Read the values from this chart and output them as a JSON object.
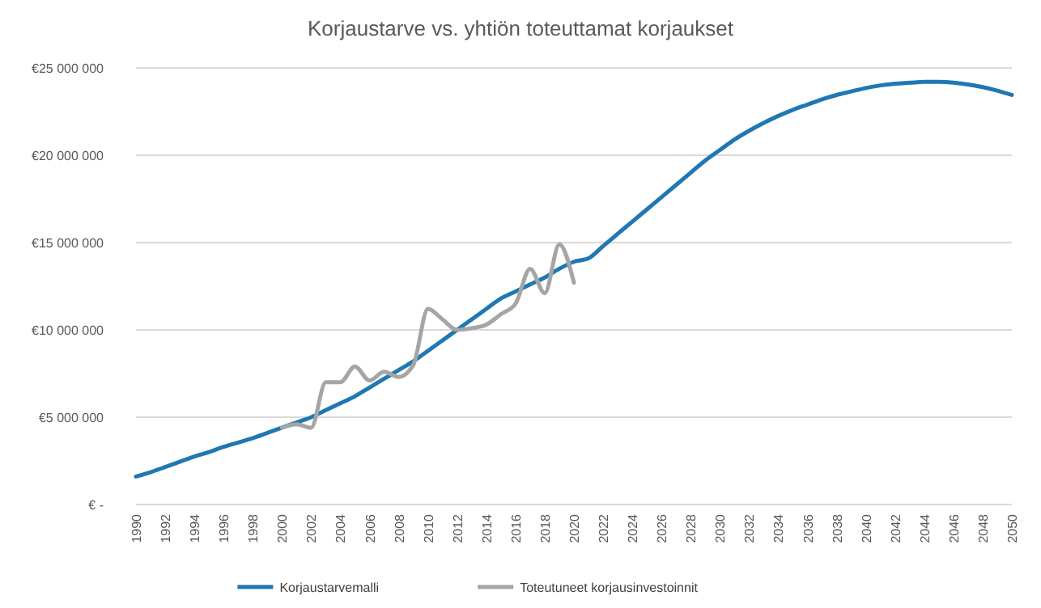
{
  "chart_data": {
    "type": "line",
    "title": "Korjaustarve vs. yhtiön toteuttamat korjaukset",
    "x": [
      1990,
      1991,
      1992,
      1993,
      1994,
      1995,
      1996,
      1997,
      1998,
      1999,
      2000,
      2001,
      2002,
      2003,
      2004,
      2005,
      2006,
      2007,
      2008,
      2009,
      2010,
      2011,
      2012,
      2013,
      2014,
      2015,
      2016,
      2017,
      2018,
      2019,
      2020,
      2021,
      2022,
      2023,
      2024,
      2025,
      2026,
      2027,
      2028,
      2029,
      2030,
      2031,
      2032,
      2033,
      2034,
      2035,
      2036,
      2037,
      2038,
      2039,
      2040,
      2041,
      2042,
      2043,
      2044,
      2045,
      2046,
      2047,
      2048,
      2049,
      2050
    ],
    "series": [
      {
        "name": "Korjaustarvemalli",
        "color": "#1f77b4",
        "values": [
          1600000,
          1850000,
          2150000,
          2450000,
          2750000,
          3000000,
          3300000,
          3550000,
          3800000,
          4100000,
          4400000,
          4700000,
          5000000,
          5400000,
          5800000,
          6200000,
          6700000,
          7200000,
          7700000,
          8200000,
          8800000,
          9400000,
          10000000,
          10600000,
          11200000,
          11800000,
          12200000,
          12600000,
          13000000,
          13500000,
          13900000,
          14100000,
          14800000,
          15500000,
          16200000,
          16900000,
          17600000,
          18300000,
          19000000,
          19700000,
          20300000,
          20900000,
          21400000,
          21850000,
          22250000,
          22600000,
          22900000,
          23200000,
          23450000,
          23650000,
          23850000,
          24000000,
          24100000,
          24150000,
          24200000,
          24200000,
          24150000,
          24050000,
          23900000,
          23700000,
          23450000
        ]
      },
      {
        "name": "Toteutuneet korjausinvestoinnit",
        "color": "#a5a5a5",
        "x": [
          2000,
          2001,
          2002,
          2003,
          2004,
          2005,
          2006,
          2007,
          2008,
          2009,
          2010,
          2011,
          2012,
          2013,
          2014,
          2015,
          2016,
          2017,
          2018,
          2019,
          2020
        ],
        "values": [
          4400000,
          4600000,
          4400000,
          7000000,
          7000000,
          7900000,
          7100000,
          7600000,
          7300000,
          8000000,
          11200000,
          10600000,
          10000000,
          10100000,
          10300000,
          10900000,
          11500000,
          13500000,
          12100000,
          14900000,
          12700000
        ]
      }
    ],
    "xlim": [
      1990,
      2050
    ],
    "xticks": [
      1990,
      1992,
      1994,
      1996,
      1998,
      2000,
      2002,
      2004,
      2006,
      2008,
      2010,
      2012,
      2014,
      2016,
      2018,
      2020,
      2022,
      2024,
      2026,
      2028,
      2030,
      2032,
      2034,
      2036,
      2038,
      2040,
      2042,
      2044,
      2046,
      2048,
      2050
    ],
    "ylim": [
      0,
      25000000
    ],
    "yticks": [
      {
        "value": 0,
        "label": "€ -"
      },
      {
        "value": 5000000,
        "label": "€5 000 000"
      },
      {
        "value": 10000000,
        "label": "€10 000 000"
      },
      {
        "value": 15000000,
        "label": "€15 000 000"
      },
      {
        "value": 20000000,
        "label": "€20 000 000"
      },
      {
        "value": 25000000,
        "label": "€25 000 000"
      }
    ],
    "grid": "y",
    "legend": "bottom",
    "line_style": "solid"
  }
}
